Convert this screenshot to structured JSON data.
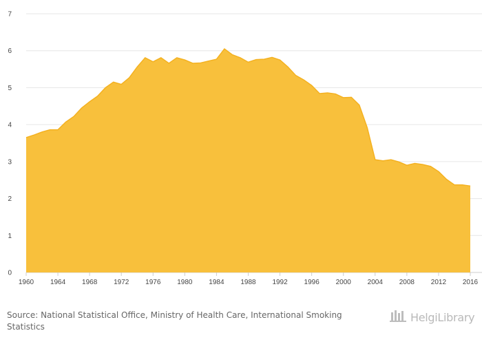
{
  "chart_data": {
    "type": "area",
    "title": "",
    "xlabel": "",
    "ylabel": "",
    "xlim": [
      1960,
      2016
    ],
    "ylim": [
      0,
      7
    ],
    "y_ticks": [
      0,
      1,
      2,
      3,
      4,
      5,
      6,
      7
    ],
    "x_ticks": [
      1960,
      1964,
      1968,
      1972,
      1976,
      1980,
      1984,
      1988,
      1992,
      1996,
      2000,
      2004,
      2008,
      2012,
      2016
    ],
    "grid": "horizontal",
    "fill_color": "#f8c03c",
    "line_color": "#f4b120",
    "x": [
      1960,
      1961,
      1962,
      1963,
      1964,
      1965,
      1966,
      1967,
      1968,
      1969,
      1970,
      1971,
      1972,
      1973,
      1974,
      1975,
      1976,
      1977,
      1978,
      1979,
      1980,
      1981,
      1982,
      1983,
      1984,
      1985,
      1986,
      1987,
      1988,
      1989,
      1990,
      1991,
      1992,
      1993,
      1994,
      1995,
      1996,
      1997,
      1998,
      1999,
      2000,
      2001,
      2002,
      2003,
      2004,
      2005,
      2006,
      2007,
      2008,
      2009,
      2010,
      2011,
      2012,
      2013,
      2014,
      2015,
      2016
    ],
    "values": [
      3.65,
      3.72,
      3.8,
      3.86,
      3.86,
      4.07,
      4.22,
      4.45,
      4.62,
      4.77,
      5.0,
      5.15,
      5.09,
      5.27,
      5.56,
      5.81,
      5.7,
      5.81,
      5.66,
      5.81,
      5.75,
      5.66,
      5.67,
      5.72,
      5.77,
      6.05,
      5.89,
      5.81,
      5.69,
      5.76,
      5.77,
      5.82,
      5.75,
      5.56,
      5.33,
      5.21,
      5.06,
      4.84,
      4.86,
      4.83,
      4.73,
      4.74,
      4.53,
      3.92,
      3.05,
      3.02,
      3.05,
      2.99,
      2.9,
      2.95,
      2.92,
      2.87,
      2.73,
      2.52,
      2.37,
      2.37,
      2.34
    ]
  },
  "source": {
    "prefix": "Source: ",
    "text": "National Statistical Office, Ministry of Health Care, International Smoking Statistics"
  },
  "brand": {
    "name": "HelgiLibrary",
    "icon": "library-logo-icon"
  }
}
